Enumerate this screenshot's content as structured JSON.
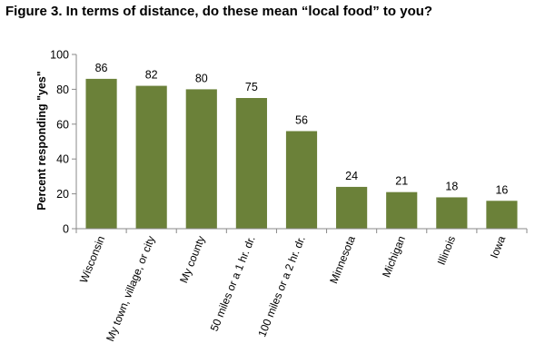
{
  "chart_data": {
    "type": "bar",
    "title": "Figure 3. In terms of distance, do these mean “local food” to you?",
    "xlabel": "",
    "ylabel": "Percent responding \"yes\"",
    "ylim": [
      0,
      100
    ],
    "yticks": [
      "0",
      "20",
      "40",
      "60",
      "80",
      "100"
    ],
    "grid": false,
    "bar_color": "#6b8139",
    "categories": [
      "Wisconsin",
      "My town, village, or city",
      "My county",
      "50 miles or a 1 hr. dr.",
      "100 miles or a 2 hr. dr.",
      "Minnesota",
      "Michigan",
      "Illinois",
      "Iowa"
    ],
    "values": [
      86,
      82,
      80,
      75,
      56,
      24,
      21,
      18,
      16
    ],
    "value_labels": [
      "86",
      "82",
      "80",
      "75",
      "56",
      "24",
      "21",
      "18",
      "16"
    ]
  }
}
